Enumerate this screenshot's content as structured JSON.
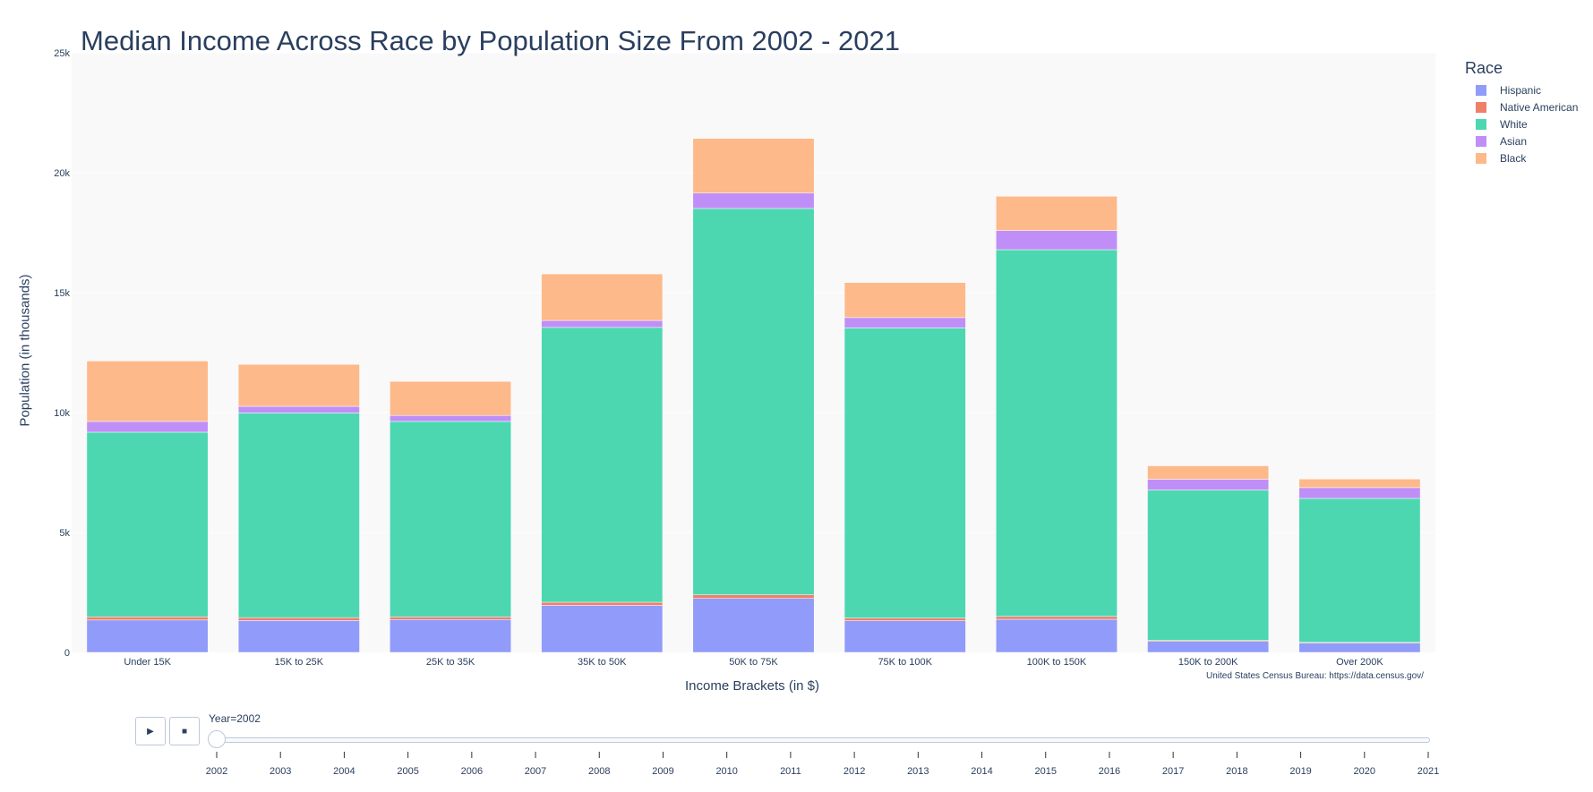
{
  "chart_data": {
    "type": "bar",
    "barmode": "stack",
    "title": "Median Income Across Race by Population Size From 2002 - 2021",
    "xlabel": "Income Brackets (in $)",
    "ylabel": "Population (in thousands)",
    "ylim": [
      0,
      25000
    ],
    "yticks": [
      0,
      5000,
      10000,
      15000,
      20000,
      25000
    ],
    "ytick_labels": [
      "0",
      "5k",
      "10k",
      "15k",
      "20k",
      "25k"
    ],
    "grid": true,
    "legend_title": "Race",
    "legend_position": "top-right",
    "categories": [
      "Under 15K",
      "15K to 25K",
      "25K to 35K",
      "35K to 50K",
      "50K to 75K",
      "75K to 100K",
      "100K to 150K",
      "150K to 200K",
      "Over 200K"
    ],
    "series": [
      {
        "name": "Hispanic",
        "color": "#919bf9",
        "values": [
          1350,
          1330,
          1370,
          1960,
          2250,
          1320,
          1380,
          460,
          390
        ]
      },
      {
        "name": "Native American",
        "color": "#ef8068",
        "values": [
          130,
          120,
          110,
          130,
          150,
          110,
          120,
          40,
          30
        ]
      },
      {
        "name": "White",
        "color": "#4cd7b1",
        "values": [
          7700,
          8530,
          8150,
          11460,
          16110,
          12100,
          15290,
          6270,
          6000
        ]
      },
      {
        "name": "Asian",
        "color": "#bf8ff7",
        "values": [
          450,
          280,
          250,
          290,
          640,
          430,
          800,
          450,
          450
        ]
      },
      {
        "name": "Black",
        "color": "#fdb98a",
        "values": [
          2520,
          1750,
          1420,
          1940,
          2280,
          1460,
          1430,
          560,
          360
        ]
      }
    ]
  },
  "source_note": "United States Census Bureau: https://data.census.gov/",
  "animation": {
    "current_value_label": "Year=2002",
    "years": [
      "2002",
      "2003",
      "2004",
      "2005",
      "2006",
      "2007",
      "2008",
      "2009",
      "2010",
      "2011",
      "2012",
      "2013",
      "2014",
      "2015",
      "2016",
      "2017",
      "2018",
      "2019",
      "2020",
      "2021"
    ],
    "selected_index": 0,
    "play_symbol": "▶",
    "stop_symbol": "■"
  }
}
